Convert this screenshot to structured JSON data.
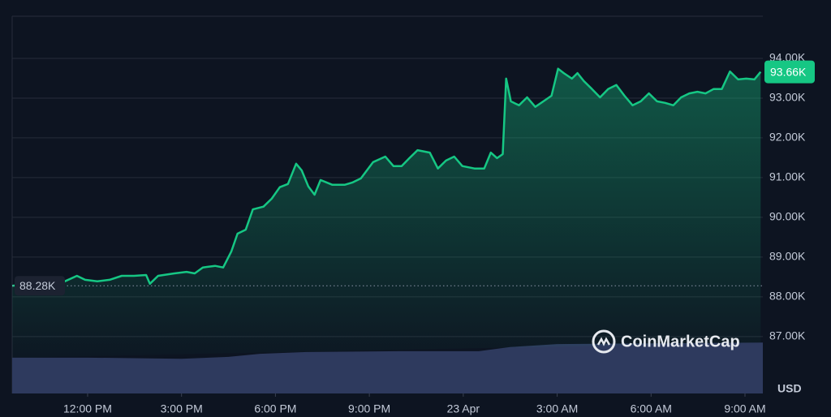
{
  "chart_data": {
    "type": "line",
    "x": [
      9.59,
      11.27,
      11.66,
      11.92,
      12.31,
      12.7,
      13.09,
      13.48,
      13.87,
      13.99,
      14.25,
      14.77,
      15.16,
      15.42,
      15.68,
      16.07,
      16.33,
      16.59,
      16.79,
      17.05,
      17.28,
      17.62,
      17.88,
      18.14,
      18.4,
      18.66,
      18.84,
      19.05,
      19.25,
      19.44,
      19.82,
      20.21,
      20.47,
      20.73,
      21.12,
      21.51,
      21.77,
      22.03,
      22.28,
      22.54,
      22.93,
      23.19,
      23.45,
      23.71,
      23.97,
      24.36,
      24.67,
      24.88,
      25.08,
      25.26,
      25.37,
      25.52,
      25.78,
      26.04,
      26.3,
      26.56,
      26.82,
      27.03,
      27.21,
      27.47,
      27.65,
      27.85,
      28.11,
      28.37,
      28.63,
      28.89,
      29.15,
      29.41,
      29.67,
      29.93,
      30.19,
      30.45,
      30.71,
      30.96,
      31.22,
      31.48,
      31.74,
      32.0,
      32.26,
      32.52,
      32.78,
      33.04,
      33.3,
      33.5
    ],
    "series": [
      {
        "name": "Price",
        "color": "#16c784",
        "values": [
          88280,
          88390,
          88530,
          88430,
          88390,
          88430,
          88530,
          88530,
          88550,
          88330,
          88530,
          88590,
          88630,
          88590,
          88740,
          88780,
          88740,
          89140,
          89590,
          89690,
          90200,
          90270,
          90470,
          90760,
          90840,
          91350,
          91180,
          90780,
          90570,
          90940,
          90820,
          90820,
          90880,
          90980,
          91390,
          91530,
          91290,
          91290,
          91490,
          91690,
          91630,
          91230,
          91430,
          91530,
          91290,
          91230,
          91230,
          91630,
          91490,
          91590,
          93490,
          92920,
          92820,
          93020,
          92780,
          92920,
          93060,
          93740,
          93630,
          93490,
          93630,
          93430,
          93230,
          93020,
          93230,
          93330,
          93060,
          92820,
          92920,
          93120,
          92920,
          92880,
          92820,
          93020,
          93120,
          93160,
          93120,
          93230,
          93230,
          93670,
          93470,
          93490,
          93470,
          93660
        ]
      }
    ],
    "volume": {
      "color": "#2e3a5e",
      "axis": "y2",
      "x": [
        9.59,
        12,
        15,
        16.5,
        17.5,
        19,
        22,
        24.5,
        25.5,
        27,
        33.57
      ],
      "values": [
        9.5,
        9.5,
        9.2,
        9.7,
        10.5,
        11,
        11.2,
        11.2,
        12.3,
        13.1,
        13.5
      ]
    },
    "y2lim": [
      0,
      100
    ],
    "xlim": [
      9.59,
      33.57
    ],
    "xticks": [
      {
        "value": 12,
        "label": "12:00 PM"
      },
      {
        "value": 15,
        "label": "3:00 PM"
      },
      {
        "value": 18,
        "label": "6:00 PM"
      },
      {
        "value": 21,
        "label": "9:00 PM"
      },
      {
        "value": 24,
        "label": "23 Apr"
      },
      {
        "value": 27,
        "label": "3:00 AM"
      },
      {
        "value": 30,
        "label": "6:00 AM"
      },
      {
        "value": 33,
        "label": "9:00 AM"
      }
    ],
    "ylim": [
      85570,
      95060
    ],
    "yticks": [
      {
        "value": 94000,
        "label": "94.00K"
      },
      {
        "value": 93000,
        "label": "93.00K"
      },
      {
        "value": 92000,
        "label": "92.00K"
      },
      {
        "value": 91000,
        "label": "91.00K"
      },
      {
        "value": 90000,
        "label": "90.00K"
      },
      {
        "value": 89000,
        "label": "89.00K"
      },
      {
        "value": 88000,
        "label": "88.00K"
      },
      {
        "value": 87000,
        "label": "87.00K"
      }
    ],
    "grid": true,
    "reference": {
      "value": 88280,
      "label": "88.28K"
    },
    "current": {
      "value": 93660,
      "label": "93.66K"
    },
    "unit": "USD",
    "watermark": "CoinMarketCap"
  }
}
